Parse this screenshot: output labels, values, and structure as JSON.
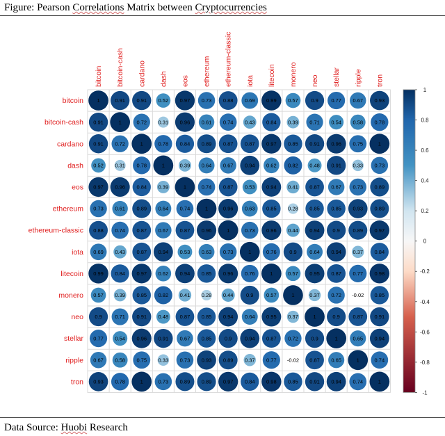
{
  "figure": {
    "caption_prefix": "Figure: Pearson ",
    "caption_squiggle": "Correlations",
    "caption_middle": " Matrix between ",
    "caption_squiggle2": "Cryptocurrencies",
    "source_prefix": "Data Source: ",
    "source_squiggle": "Huobi",
    "source_suffix": " Research"
  },
  "colors": {
    "positive_dark": "#053061",
    "positive_light": "#d1e5f0",
    "neutral": "#f7f7f7",
    "negative_light": "#fddbc7",
    "negative_dark": "#67001f",
    "label": "#e02020",
    "grid": "#d9d9d9"
  },
  "chart_data": {
    "type": "heatmap",
    "title": "",
    "labels": [
      "bitcoin",
      "bitcoin-cash",
      "cardano",
      "dash",
      "eos",
      "ethereum",
      "ethereum-classic",
      "iota",
      "litecoin",
      "monero",
      "neo",
      "stellar",
      "ripple",
      "tron"
    ],
    "matrix": [
      [
        1,
        0.91,
        0.91,
        0.52,
        0.97,
        0.73,
        0.88,
        0.69,
        0.99,
        0.57,
        0.9,
        0.77,
        0.67,
        0.93
      ],
      [
        0.91,
        1,
        0.72,
        0.31,
        0.96,
        0.61,
        0.74,
        0.43,
        0.84,
        0.39,
        0.71,
        0.54,
        0.58,
        0.78
      ],
      [
        0.91,
        0.72,
        1,
        0.78,
        0.84,
        0.89,
        0.87,
        0.87,
        0.97,
        0.85,
        0.91,
        0.96,
        0.75,
        1
      ],
      [
        0.52,
        0.31,
        0.78,
        1,
        0.39,
        0.64,
        0.67,
        0.94,
        0.62,
        0.82,
        0.48,
        0.91,
        0.33,
        0.73
      ],
      [
        0.97,
        0.96,
        0.84,
        0.39,
        1,
        0.74,
        0.87,
        0.53,
        0.94,
        0.41,
        0.87,
        0.67,
        0.73,
        0.89
      ],
      [
        0.73,
        0.61,
        0.89,
        0.64,
        0.74,
        1,
        0.96,
        0.63,
        0.85,
        0.28,
        0.85,
        0.85,
        0.93,
        0.89
      ],
      [
        0.88,
        0.74,
        0.87,
        0.67,
        0.87,
        0.96,
        1,
        0.73,
        0.96,
        0.44,
        0.94,
        0.9,
        0.89,
        0.97
      ],
      [
        0.69,
        0.43,
        0.87,
        0.94,
        0.53,
        0.63,
        0.73,
        1,
        0.76,
        0.9,
        0.64,
        0.94,
        0.37,
        0.84
      ],
      [
        0.99,
        0.84,
        0.97,
        0.62,
        0.94,
        0.85,
        0.96,
        0.76,
        1,
        0.57,
        0.95,
        0.87,
        0.77,
        0.98
      ],
      [
        0.57,
        0.39,
        0.85,
        0.82,
        0.41,
        0.28,
        0.44,
        0.9,
        0.57,
        1,
        0.37,
        0.72,
        -0.02,
        0.85
      ],
      [
        0.9,
        0.71,
        0.91,
        0.48,
        0.87,
        0.85,
        0.94,
        0.64,
        0.95,
        0.37,
        1,
        0.9,
        0.87,
        0.91
      ],
      [
        0.77,
        0.54,
        0.96,
        0.91,
        0.67,
        0.85,
        0.9,
        0.94,
        0.87,
        0.72,
        0.9,
        1,
        0.65,
        0.94
      ],
      [
        0.67,
        0.58,
        0.75,
        0.33,
        0.73,
        0.93,
        0.89,
        0.37,
        0.77,
        -0.02,
        0.87,
        0.65,
        1,
        0.74
      ],
      [
        0.93,
        0.78,
        1,
        0.73,
        0.89,
        0.89,
        0.97,
        0.84,
        0.98,
        0.85,
        0.91,
        0.94,
        0.74,
        1
      ]
    ],
    "colorbar": {
      "range": [
        -1,
        1
      ],
      "ticks": [
        "1",
        "0.8",
        "0.6",
        "0.4",
        "0.2",
        "0",
        "-0.2",
        "-0.4",
        "-0.6",
        "-0.8",
        "-1"
      ]
    },
    "grid": true,
    "legend": "right"
  }
}
